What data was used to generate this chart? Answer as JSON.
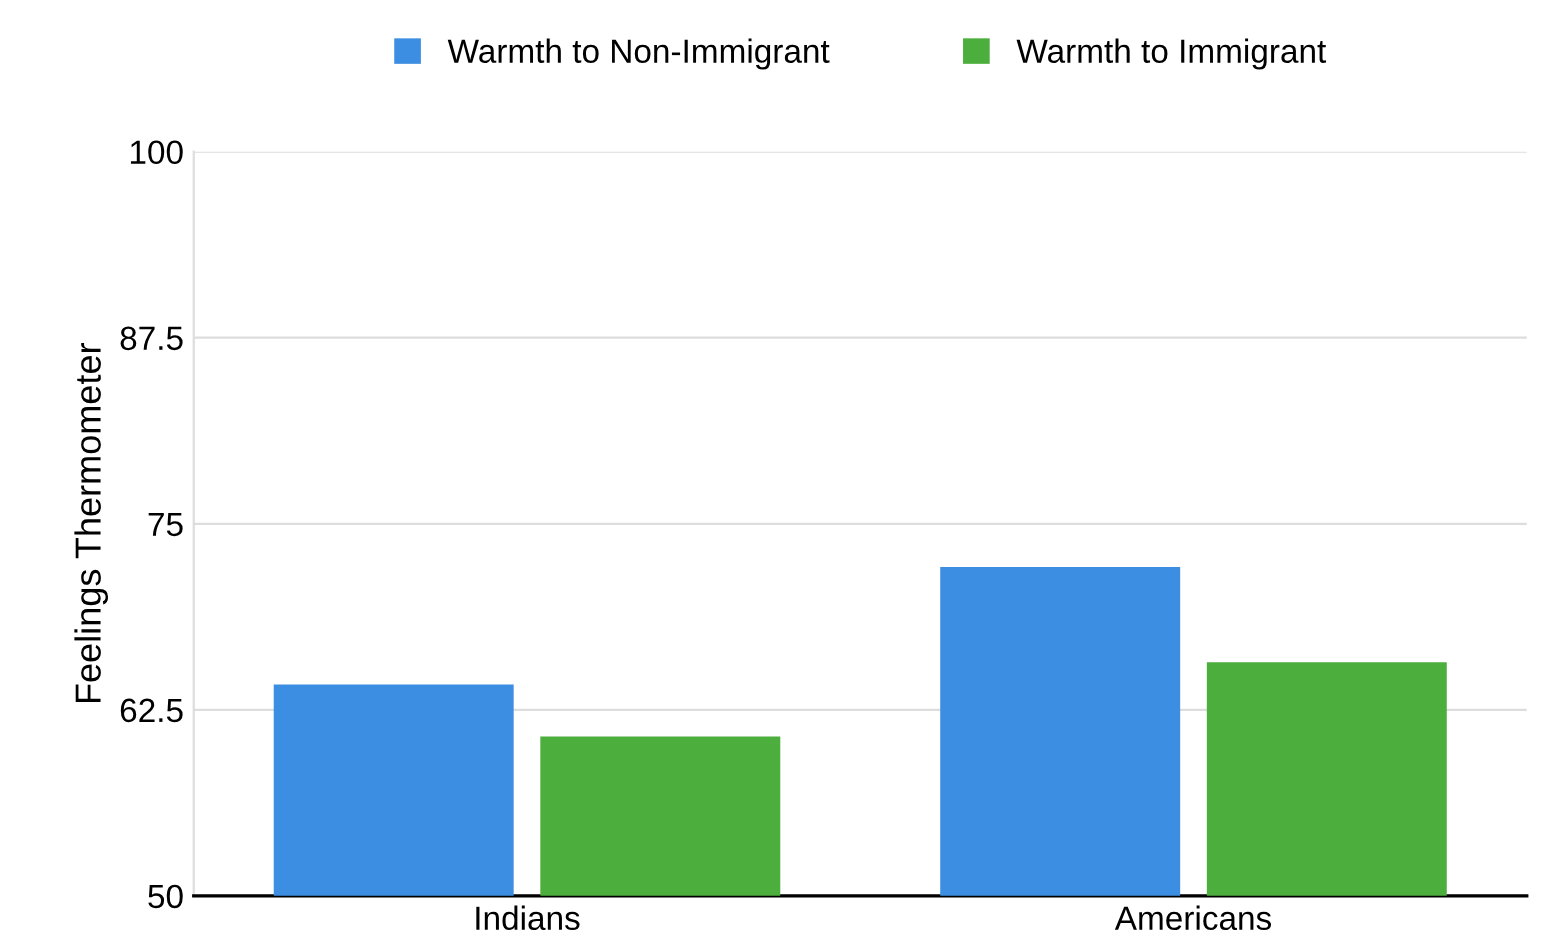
{
  "chart_data": {
    "type": "bar",
    "ylabel": "Feelings Thermometer",
    "categories": [
      "Indians",
      "Americans"
    ],
    "series": [
      {
        "name": "Warmth to Non-Immigrant",
        "color": "#3b8ee2",
        "values": [
          64.2,
          72.1
        ]
      },
      {
        "name": "Warmth to Immigrant",
        "color": "#4cae3c",
        "values": [
          60.7,
          65.7
        ]
      }
    ],
    "ylim": [
      50,
      100
    ],
    "yticks": [
      50,
      62.5,
      75,
      87.5,
      100
    ],
    "grid": "y",
    "legend": "top"
  }
}
